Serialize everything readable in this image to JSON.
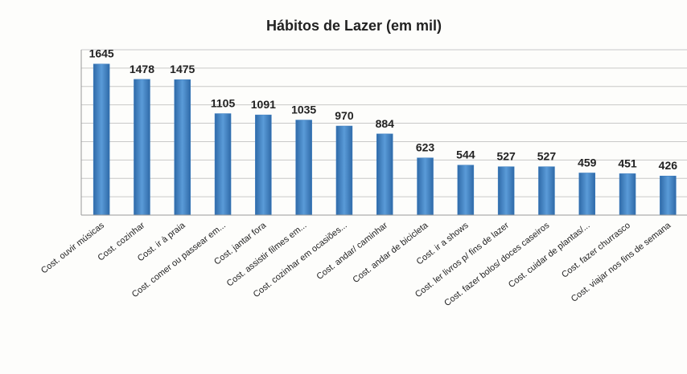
{
  "chart_data": {
    "type": "bar",
    "title": "Hábitos de Lazer (em mil)",
    "categories": [
      "Cost. ouvir músicas",
      "Cost. cozinhar",
      "Cost. ir à praia",
      "Cost. comer ou passear em...",
      "Cost. jantar fora",
      "Cost. assistir filmes em...",
      "Cost. cozinhar em ocasiões...",
      "Cost. andar/ caminhar",
      "Cost. andar de bicicleta",
      "Cost. ir a shows",
      "Cost. ler livros p/ fins de lazer",
      "Cost. fazer bolos/ doces caseiros",
      "Cost. cuidar de plantas/...",
      "Cost. fazer churrasco",
      "Cost. viajar nos fins de semana"
    ],
    "values": [
      1645,
      1478,
      1475,
      1105,
      1091,
      1035,
      970,
      884,
      623,
      544,
      527,
      527,
      459,
      451,
      426
    ],
    "color": "#3b7dc0",
    "ylim": [
      0,
      1800
    ],
    "yticks": [
      0,
      200,
      400,
      600,
      800,
      1000,
      1200,
      1400,
      1600,
      1800
    ],
    "grid": true
  }
}
